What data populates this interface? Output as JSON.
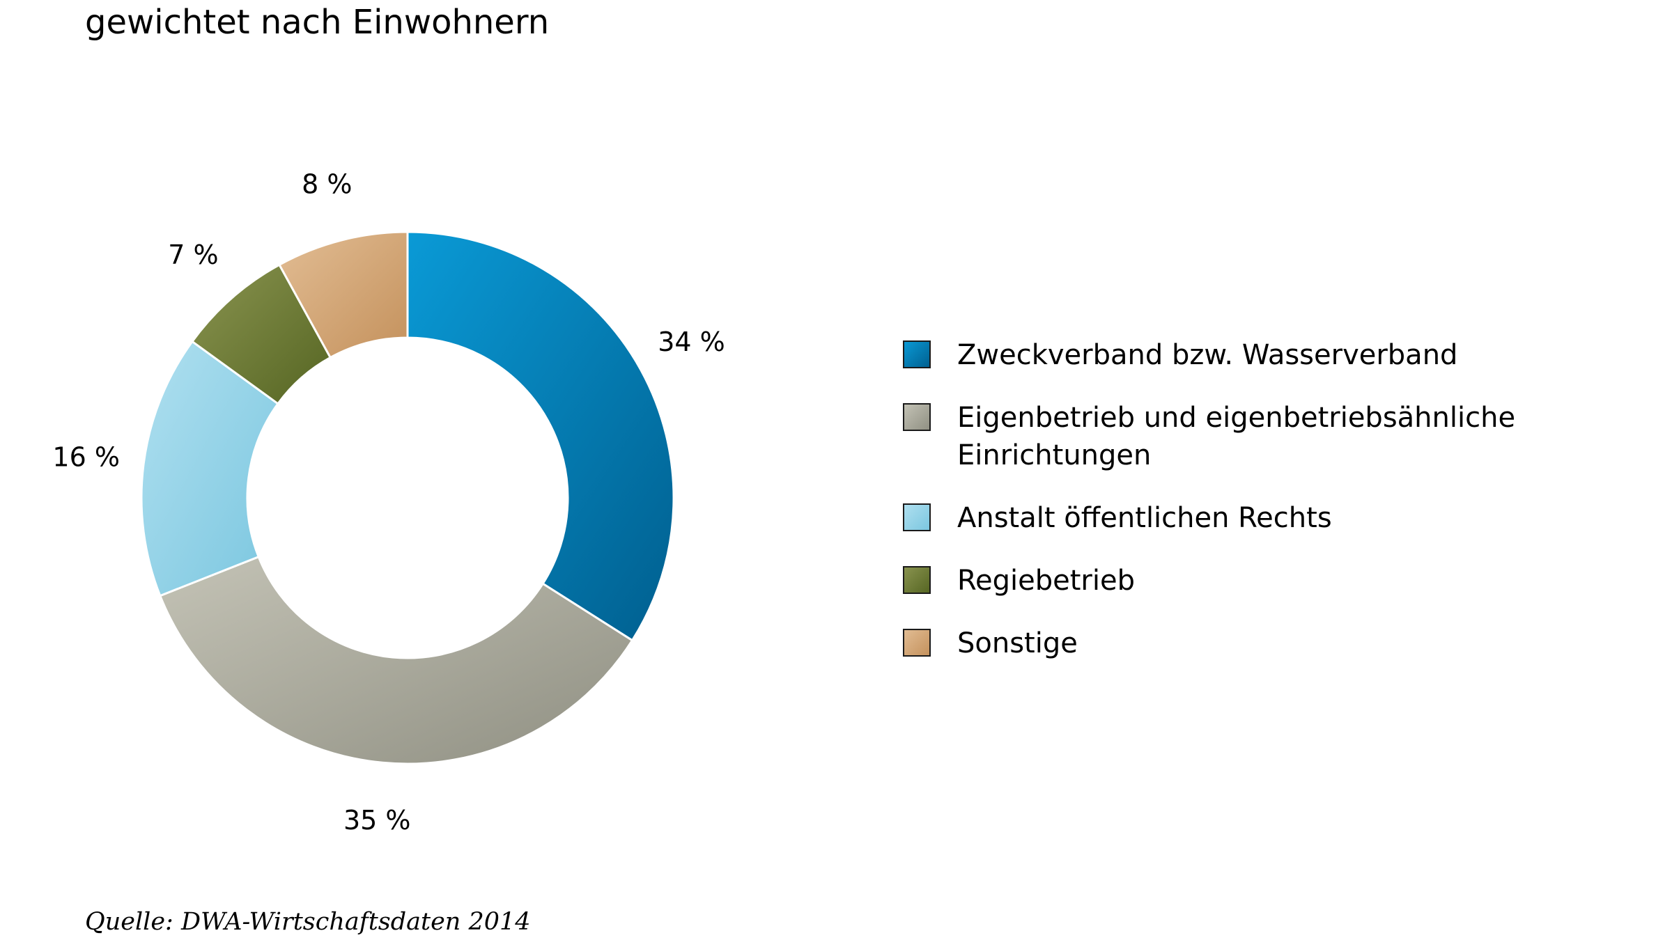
{
  "chart_data": {
    "type": "pie",
    "subtitle": "gewichtet nach Einwohnern",
    "source": "Quelle: DWA-Wirtschaftsdaten 2014",
    "legend_position": "right",
    "slices": [
      {
        "label": "Zweckverband bzw. Wasserverband",
        "value": 34,
        "value_label": "34 %",
        "color": "#0077b6",
        "legend_lines": [
          "Zweckverband bzw. Wasserverband"
        ]
      },
      {
        "label": "Eigenbetrieb und eigenbetriebsähnliche Einrichtungen",
        "value": 35,
        "value_label": "35 %",
        "color": "#a8a89a",
        "legend_lines": [
          "Eigenbetrieb und eigenbetriebsähnliche",
          "Einrichtungen"
        ]
      },
      {
        "label": "Anstalt öffentlichen Rechts",
        "value": 16,
        "value_label": "16 %",
        "color": "#8ccfe4",
        "legend_lines": [
          "Anstalt öffentlichen Rechts"
        ]
      },
      {
        "label": "Regiebetrieb",
        "value": 7,
        "value_label": "7 %",
        "color": "#6a7a34",
        "legend_lines": [
          "Regiebetrieb"
        ]
      },
      {
        "label": "Sonstige",
        "value": 8,
        "value_label": "8 %",
        "color": "#d2a06e",
        "legend_lines": [
          "Sonstige"
        ]
      }
    ]
  }
}
